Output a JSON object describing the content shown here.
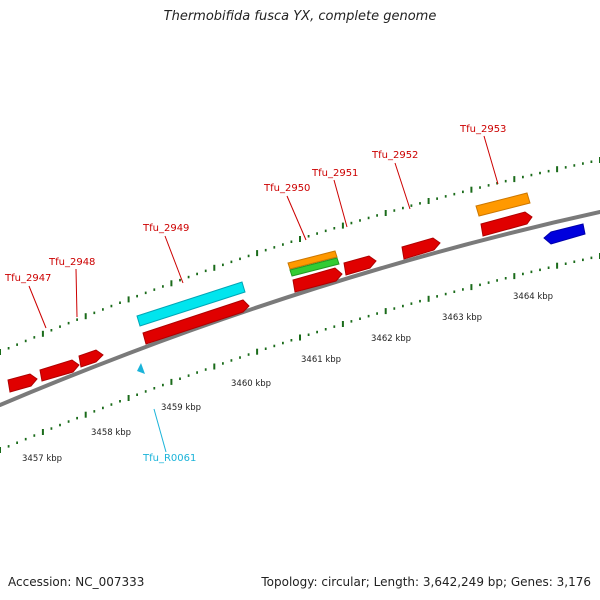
{
  "title": "Thermobifida fusca YX, complete genome",
  "footer": {
    "accession": "Accession: NC_007333",
    "topology": "Topology: circular; Length: 3,642,249 bp; Genes: 3,176"
  },
  "colors": {
    "background": "#ffffff",
    "backbone": "#808080",
    "cds_forward": "#ff0000",
    "cds_reverse": "#0000ff",
    "rrna": "#ff9900",
    "trna": "#33cc33",
    "misc": "#00ffff",
    "label_cds": "#cc0000",
    "label_misc": "#1ab3d9",
    "ticks": "#006600"
  },
  "kbp_labels": [
    "3457 kbp",
    "3458 kbp",
    "3459 kbp",
    "3460 kbp",
    "3461 kbp",
    "3462 kbp",
    "3463 kbp",
    "3464 kbp"
  ],
  "gene_labels": [
    "Tfu_2947",
    "Tfu_2948",
    "Tfu_2949",
    "Tfu_2950",
    "Tfu_2951",
    "Tfu_2952",
    "Tfu_2953",
    "Tfu_R0061"
  ]
}
